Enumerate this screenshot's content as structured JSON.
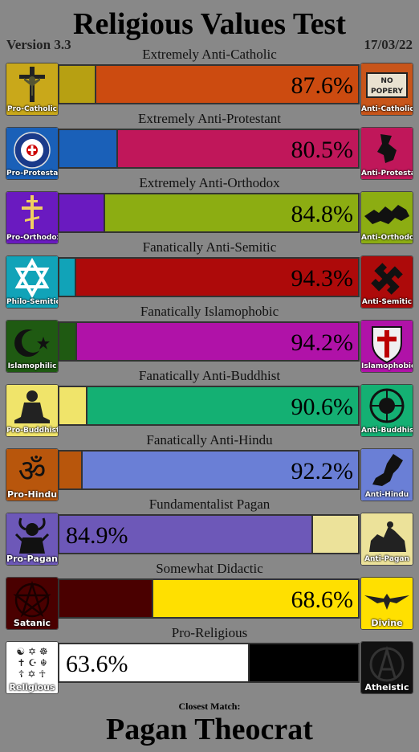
{
  "title": "Religious Values Test",
  "version": "Version 3.3",
  "date": "17/03/22",
  "axes": [
    {
      "label": "Extremely Anti-Catholic",
      "left_name": "Pro-Catholic",
      "right_name": "Anti-Catholic",
      "left_pct": 12.4,
      "right_pct": 87.6,
      "left_color": "#b7a012",
      "right_color": "#cc4b10",
      "shown": "87.6%",
      "shown_side": "right",
      "left_icon": "crucifix-icon",
      "right_icon": "no-popery-icon"
    },
    {
      "label": "Extremely Anti-Protestant",
      "left_name": "Pro-Protestant",
      "right_name": "Anti-Protestant",
      "left_pct": 19.5,
      "right_pct": 80.5,
      "left_color": "#1a60b8",
      "right_color": "#c0175a",
      "shown": "80.5%",
      "shown_side": "right",
      "left_icon": "luther-rose-icon",
      "right_icon": "protest-map-icon"
    },
    {
      "label": "Extremely Anti-Orthodox",
      "left_name": "Pro-Orthodox",
      "right_name": "Anti-Orthodox",
      "left_pct": 15.2,
      "right_pct": 84.8,
      "left_color": "#6a1ac0",
      "right_color": "#8cad12",
      "shown": "84.8%",
      "shown_side": "right",
      "left_icon": "orthodox-cross-icon",
      "right_icon": "map-silhouette-icon"
    },
    {
      "label": "Fanatically Anti-Semitic",
      "left_name": "Philo-Semitic",
      "right_name": "Anti-Semitic",
      "left_pct": 5.7,
      "right_pct": 94.3,
      "left_color": "#11a3b8",
      "right_color": "#ad0a0a",
      "shown": "94.3%",
      "shown_side": "right",
      "left_icon": "star-of-david-icon",
      "right_icon": "swastika-icon"
    },
    {
      "label": "Fanatically Islamophobic",
      "left_name": "Islamophilic",
      "right_name": "Islamophobic",
      "left_pct": 5.8,
      "right_pct": 94.2,
      "left_color": "#1f5a12",
      "right_color": "#b012a8",
      "shown": "94.2%",
      "shown_side": "right",
      "left_icon": "crescent-star-icon",
      "right_icon": "crusader-shield-icon"
    },
    {
      "label": "Fanatically Anti-Buddhist",
      "left_name": "Pro-Buddhist",
      "right_name": "Anti-Buddhist",
      "left_pct": 9.4,
      "right_pct": 90.6,
      "left_color": "#f0e46a",
      "right_color": "#14b073",
      "shown": "90.6%",
      "shown_side": "right",
      "left_icon": "buddha-icon",
      "right_icon": "anti-buddhist-emblem-icon"
    },
    {
      "label": "Fanatically Anti-Hindu",
      "left_name": "Pro-Hindu",
      "right_name": "Anti-Hindu",
      "left_pct": 7.8,
      "right_pct": 92.2,
      "left_color": "#b8560c",
      "right_color": "#6a7fd6",
      "shown": "92.2%",
      "shown_side": "right",
      "left_icon": "om-icon",
      "right_icon": "pakistan-map-icon"
    },
    {
      "label": "Fundamentalist Pagan",
      "left_name": "Pro-Pagan",
      "right_name": "Anti-Pagan",
      "left_pct": 84.9,
      "right_pct": 15.1,
      "left_color": "#6d58b8",
      "right_color": "#ece29a",
      "shown": "84.9%",
      "shown_side": "left",
      "left_icon": "horned-god-icon",
      "right_icon": "statue-icon"
    },
    {
      "label": "Somewhat Didactic",
      "left_name": "Satanic",
      "right_name": "Divine",
      "left_pct": 31.4,
      "right_pct": 68.6,
      "left_color": "#4a0000",
      "right_color": "#ffe000",
      "shown": "68.6%",
      "shown_side": "right",
      "left_icon": "pentagram-icon",
      "right_icon": "winged-emblem-icon"
    },
    {
      "label": "Pro-Religious",
      "left_name": "Religious",
      "right_name": "Atheistic",
      "left_pct": 63.6,
      "right_pct": 36.4,
      "left_color": "#ffffff",
      "right_color": "#000000",
      "shown": "63.6%",
      "shown_side": "left",
      "left_icon": "religious-symbols-icon",
      "right_icon": "atheist-atom-icon"
    }
  ],
  "closest_label": "Closest Match:",
  "closest_value": "Pagan Theocrat"
}
